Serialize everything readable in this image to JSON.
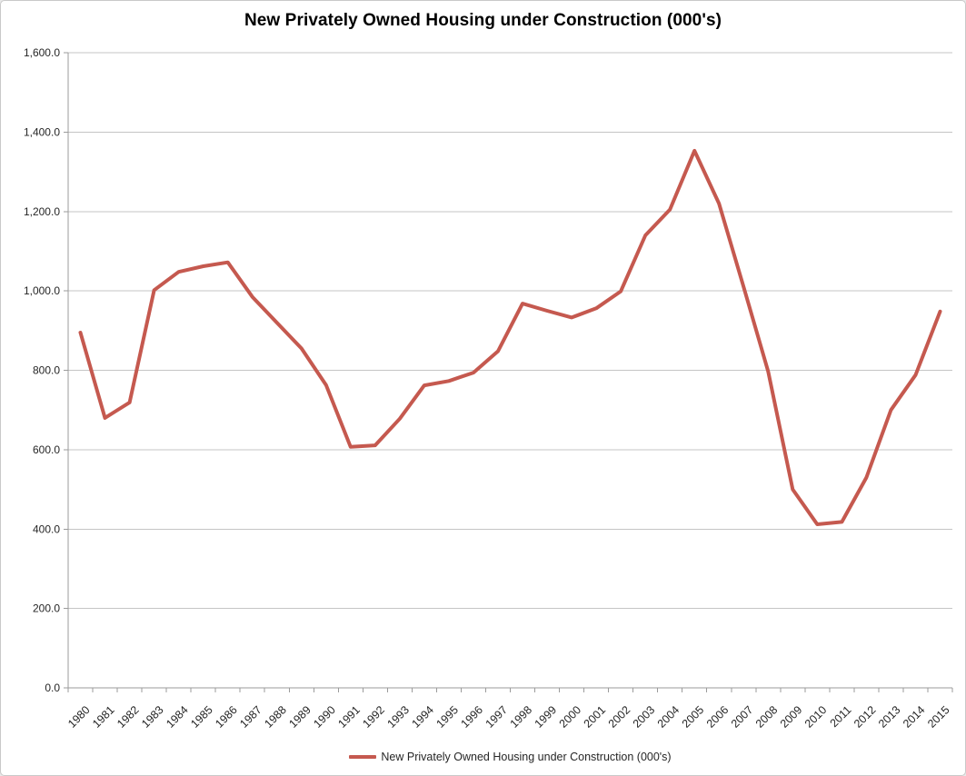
{
  "window": {
    "background": "#ffffff",
    "border_color": "#c9c9c9"
  },
  "colors": {
    "series": "#C5594F",
    "gridline": "#c5c5c5",
    "axis": "#9b9b9b",
    "tick_label": "#262626",
    "title": "#000000"
  },
  "chart_data": {
    "type": "line",
    "title": "New Privately Owned Housing under Construction (000's)",
    "categories": [
      "1980",
      "1981",
      "1982",
      "1983",
      "1984",
      "1985",
      "1986",
      "1987",
      "1988",
      "1989",
      "1990",
      "1991",
      "1992",
      "1993",
      "1994",
      "1995",
      "1996",
      "1997",
      "1998",
      "1999",
      "2000",
      "2001",
      "2002",
      "2003",
      "2004",
      "2005",
      "2006",
      "2007",
      "2008",
      "2009",
      "2010",
      "2011",
      "2012",
      "2013",
      "2014",
      "2015"
    ],
    "series": [
      {
        "name": "New Privately Owned Housing under Construction (000's)",
        "color": "#C5594F",
        "values": [
          895,
          680,
          719,
          1002,
          1048,
          1062,
          1072,
          985,
          920,
          855,
          763,
          607,
          611,
          678,
          762,
          773,
          794,
          848,
          968,
          950,
          933,
          956,
          999,
          1140,
          1205,
          1353,
          1220,
          1010,
          797,
          500,
          412,
          418,
          530,
          700,
          788,
          948
        ]
      }
    ],
    "xlabel": "",
    "ylabel": "",
    "ylim": [
      0,
      1600
    ],
    "y_tick_step": 200,
    "y_tick_labels": [
      "0.0",
      "200.0",
      "400.0",
      "600.0",
      "800.0",
      "1,000.0",
      "1,200.0",
      "1,400.0",
      "1,600.0"
    ],
    "x_label_rotation_deg": 45,
    "grid": "horizontal-only",
    "legend_position": "bottom-center"
  }
}
